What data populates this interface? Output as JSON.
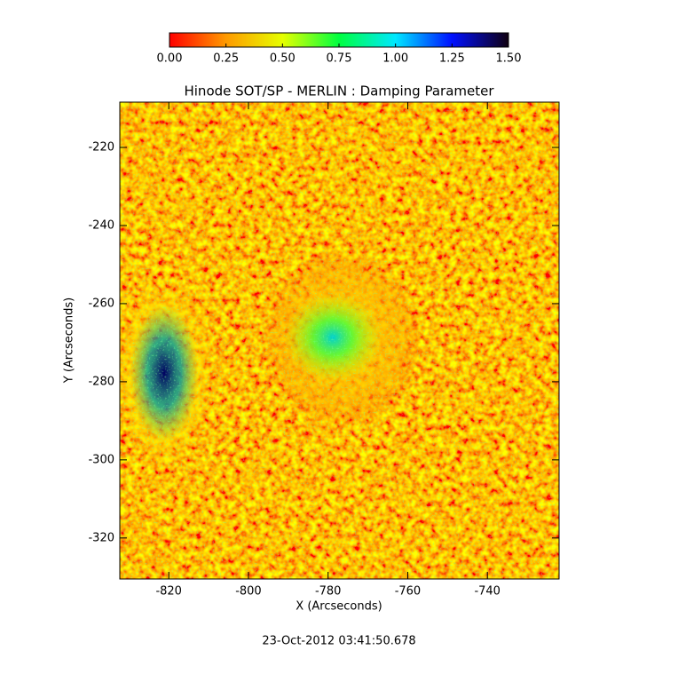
{
  "chart_data": {
    "type": "heatmap",
    "title": "Hinode SOT/SP - MERLIN : Damping Parameter",
    "x_label": "X (Arcseconds)",
    "y_label": "Y (Arcseconds)",
    "annotation": "23-Oct-2012 03:41:50.678",
    "xlim": [
      -832.3,
      -722
    ],
    "xticks": [
      -820,
      -800,
      -780,
      -760,
      -740
    ],
    "ylim": [
      -330.5,
      -208.4
    ],
    "yticks": [
      -220,
      -240,
      -260,
      -280,
      -300,
      -320
    ],
    "colorbar": {
      "range": [
        0,
        1.5
      ],
      "ticks": [
        {
          "value": 0,
          "label": "0.00"
        },
        {
          "value": 0.25,
          "label": "0.25"
        },
        {
          "value": 0.5,
          "label": "0.50"
        },
        {
          "value": 0.75,
          "label": "0.75"
        },
        {
          "value": 1,
          "label": "1.00"
        },
        {
          "value": 1.25,
          "label": "1.25"
        },
        {
          "value": 1.5,
          "label": "1.50"
        }
      ],
      "colors": [
        "#ff0000",
        "#ff9a00",
        "#e6ff00",
        "#00ff40",
        "#00e8ff",
        "#0010ff",
        "#100010"
      ]
    }
  }
}
